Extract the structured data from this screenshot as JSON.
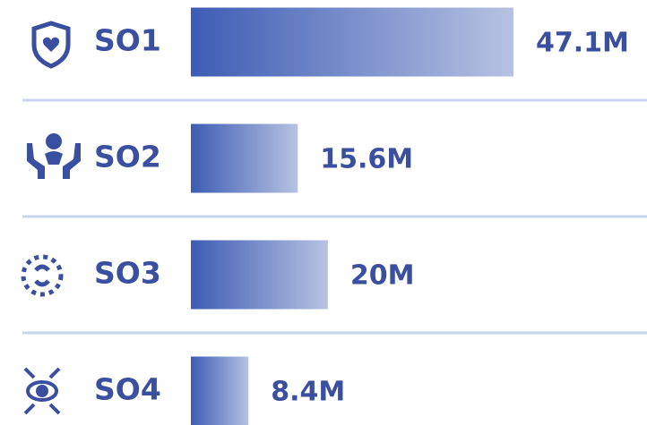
{
  "chart_data": {
    "type": "bar",
    "orientation": "horizontal",
    "categories": [
      "SO1",
      "SO2",
      "SO3",
      "SO4"
    ],
    "values": [
      47.1,
      15.6,
      20,
      8.4
    ],
    "value_labels": [
      "47.1M",
      "15.6M",
      "20M",
      "8.4M"
    ],
    "color": "#3d5cb4"
  }
}
